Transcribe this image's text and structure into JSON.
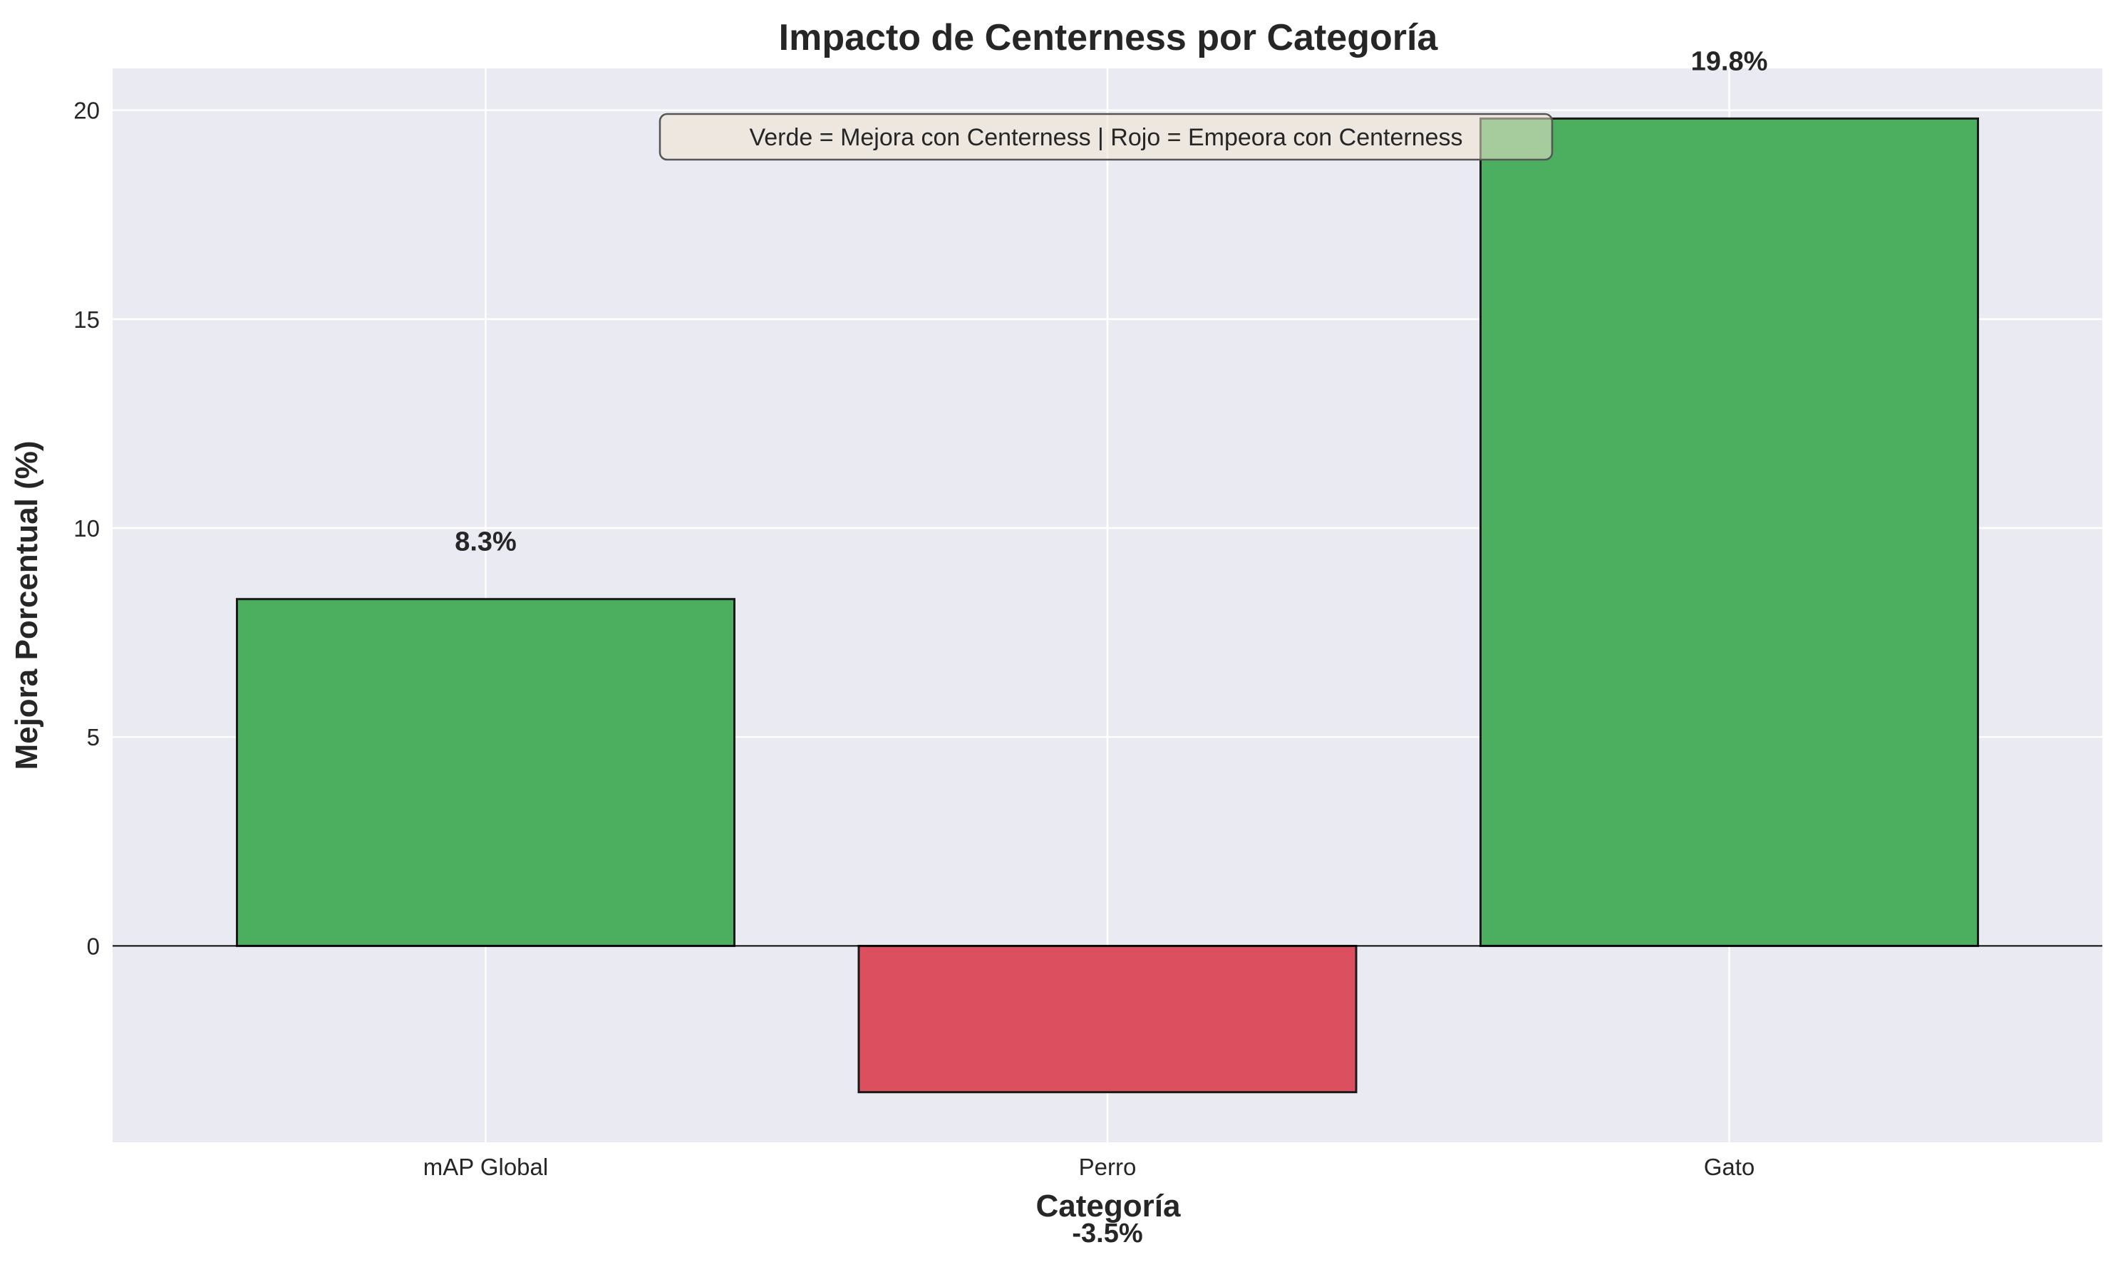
{
  "chart_data": {
    "type": "bar",
    "title": "Impacto de Centerness por Categoría",
    "xlabel": "Categoría",
    "ylabel": "Mejora Porcentual (%)",
    "categories": [
      "mAP Global",
      "Perro",
      "Gato"
    ],
    "values": [
      8.3,
      -3.5,
      19.8
    ],
    "value_labels": [
      "8.3%",
      "-3.5%",
      "19.8%"
    ],
    "ylim": [
      -4.7,
      21.0
    ],
    "yticks": [
      0,
      5,
      10,
      15,
      20
    ],
    "ytick_labels": [
      "0",
      "5",
      "10",
      "15",
      "20"
    ],
    "grid": true,
    "annotation": "Verde = Mejora con Centerness | Rojo = Empeora con Centerness",
    "colors": {
      "positive": "#4caf5f",
      "negative": "#dc4f5f",
      "plot_background": "#eaeaf2",
      "grid": "#ffffff",
      "bar_edge": "#1a1a1a",
      "annotation_background": "#f0e4cf"
    }
  }
}
